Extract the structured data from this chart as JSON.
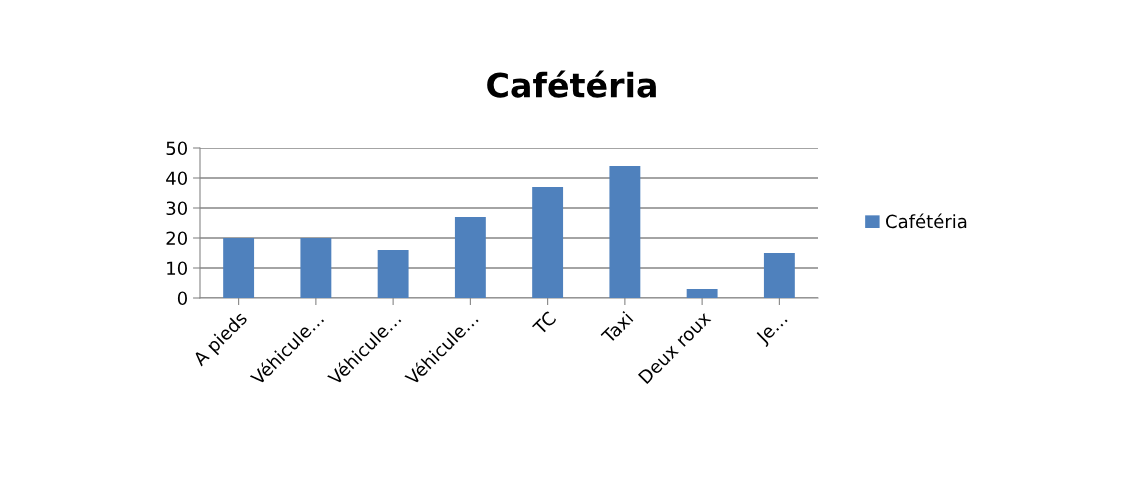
{
  "chart_data": {
    "type": "bar",
    "title": "Cafétéria",
    "categories": [
      "A pieds",
      "Véhicule…",
      "Véhicule…",
      "Véhicule…",
      "TC",
      "Taxi",
      "Deux roux",
      "Je…"
    ],
    "series": [
      {
        "name": "Cafétéria",
        "color": "#4f81bd",
        "values": [
          20,
          20,
          16,
          27,
          37,
          44,
          3,
          15
        ]
      }
    ],
    "ylim": [
      0,
      50
    ],
    "yticks": [
      0,
      10,
      20,
      30,
      40,
      50
    ],
    "grid": "y",
    "legend": "right"
  }
}
